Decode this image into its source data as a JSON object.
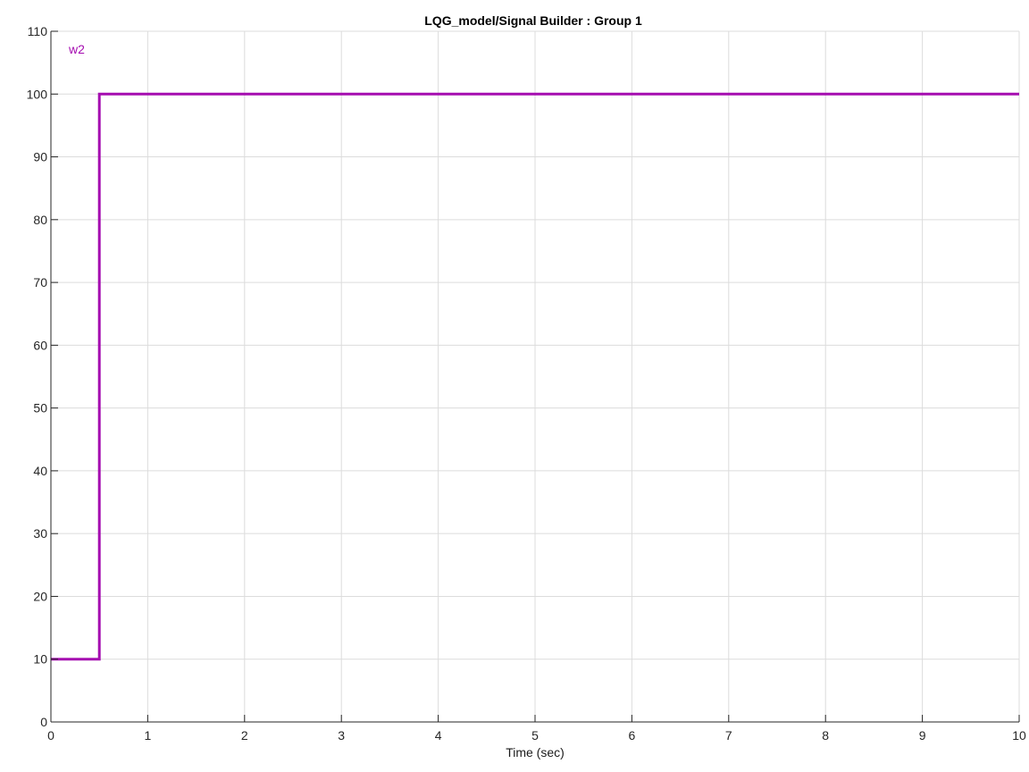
{
  "chart_data": {
    "type": "line",
    "title": "LQG_model/Signal Builder : Group 1",
    "xlabel": "Time (sec)",
    "ylabel": "",
    "xlim": [
      0,
      10
    ],
    "ylim": [
      0,
      110
    ],
    "x_ticks": [
      0,
      1,
      2,
      3,
      4,
      5,
      6,
      7,
      8,
      9,
      10
    ],
    "y_ticks": [
      0,
      10,
      20,
      30,
      40,
      50,
      60,
      70,
      80,
      90,
      100,
      110
    ],
    "grid": true,
    "series": [
      {
        "name": "w2",
        "color": "#a50db0",
        "x": [
          0,
          0.5,
          0.5,
          10
        ],
        "y": [
          10,
          10,
          100,
          100
        ]
      }
    ]
  },
  "colors": {
    "grid": "#dcdcdc",
    "axis": "#262626",
    "background": "#ffffff"
  }
}
